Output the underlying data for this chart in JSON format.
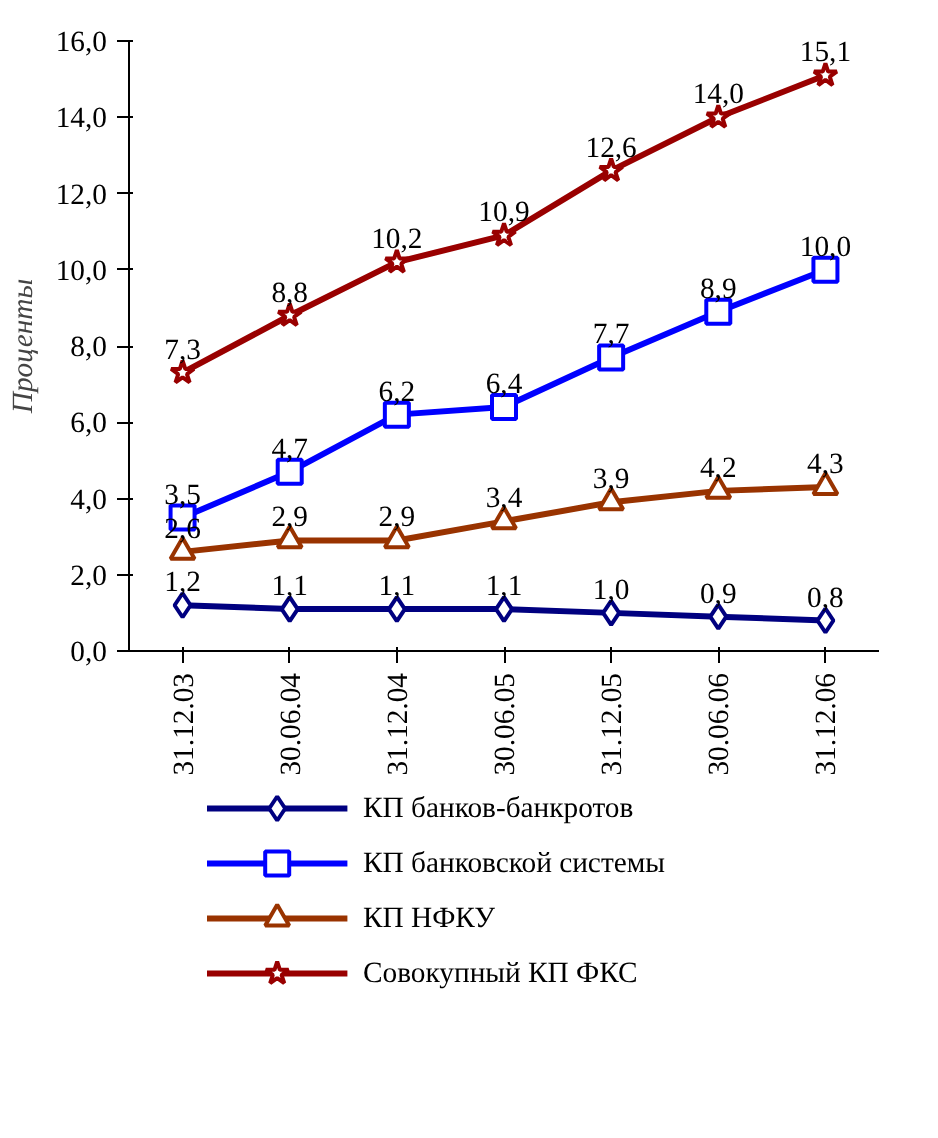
{
  "chart_data": {
    "type": "line",
    "ylabel": "Проценты",
    "categories": [
      "31.12.03",
      "30.06.04",
      "31.12.04",
      "30.06.05",
      "31.12.05",
      "30.06.06",
      "31.12.06"
    ],
    "ylim": [
      0,
      16
    ],
    "yticks": [
      {
        "value": 0,
        "label": "0,0"
      },
      {
        "value": 2,
        "label": "2,0"
      },
      {
        "value": 4,
        "label": "4,0"
      },
      {
        "value": 6,
        "label": "6,0"
      },
      {
        "value": 8,
        "label": "8,0"
      },
      {
        "value": 10,
        "label": "10,0"
      },
      {
        "value": 12,
        "label": "12,0"
      },
      {
        "value": 14,
        "label": "14,0"
      },
      {
        "value": 16,
        "label": "16,0"
      }
    ],
    "grid": false,
    "legend": "bottom",
    "line_style": "solid",
    "series": [
      {
        "name": "КП банков-банкротов",
        "color": "#000080",
        "marker": "diamond",
        "values": [
          1.2,
          1.1,
          1.1,
          1.1,
          1.0,
          0.9,
          0.8
        ],
        "value_labels": [
          "1,2",
          "1,1",
          "1,1",
          "1,1",
          "1,0",
          "0,9",
          "0,8"
        ]
      },
      {
        "name": "КП банковской системы",
        "color": "#0000ff",
        "marker": "square",
        "values": [
          3.5,
          4.7,
          6.2,
          6.4,
          7.7,
          8.9,
          10.0
        ],
        "value_labels": [
          "3,5",
          "4,7",
          "6,2",
          "6,4",
          "7,7",
          "8,9",
          "10,0"
        ]
      },
      {
        "name": "КП НФКУ",
        "color": "#993300",
        "marker": "triangle",
        "values": [
          2.6,
          2.9,
          2.9,
          3.4,
          3.9,
          4.2,
          4.3
        ],
        "value_labels": [
          "2,6",
          "2,9",
          "2,9",
          "3,4",
          "3,9",
          "4,2",
          "4,3"
        ]
      },
      {
        "name": "Совокупный КП ФКС",
        "color": "#990000",
        "marker": "star",
        "values": [
          7.3,
          8.8,
          10.2,
          10.9,
          12.6,
          14.0,
          15.1
        ],
        "value_labels": [
          "7,3",
          "8,8",
          "10,2",
          "10,9",
          "12,6",
          "14,0",
          "15,1"
        ]
      }
    ]
  }
}
